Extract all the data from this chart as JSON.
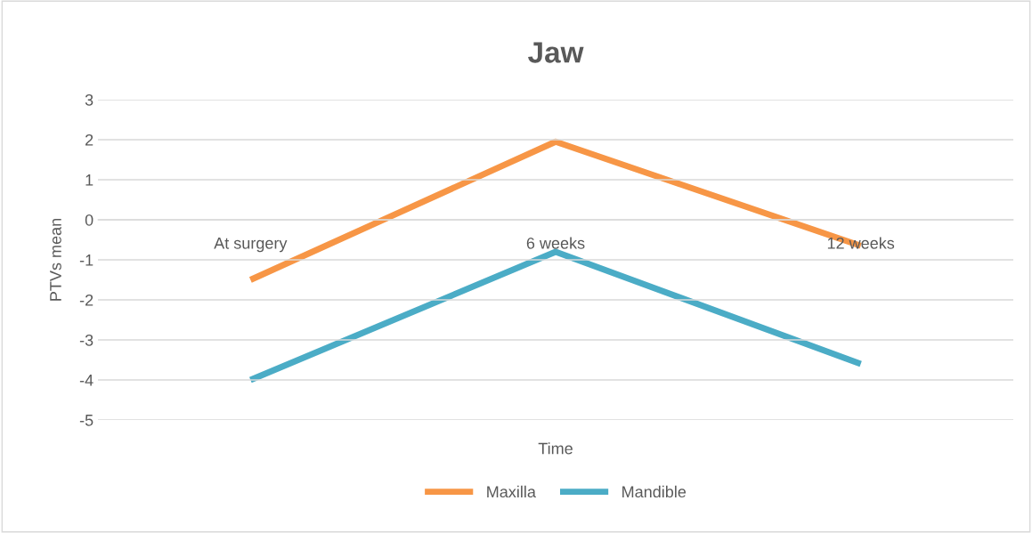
{
  "chart_data": {
    "type": "line",
    "title": "Jaw",
    "xlabel": "Time",
    "ylabel": "PTVs mean",
    "categories": [
      "At surgery",
      "6 weeks",
      "12 weeks"
    ],
    "series": [
      {
        "name": "Maxilla",
        "color": "#f79646",
        "values": [
          -1.5,
          1.95,
          -0.65
        ]
      },
      {
        "name": "Mandible",
        "color": "#4bacc6",
        "values": [
          -4.0,
          -0.8,
          -3.6
        ]
      }
    ],
    "ylim": [
      -5,
      3
    ],
    "yticks": [
      -5,
      -4,
      -3,
      -2,
      -1,
      0,
      1,
      2,
      3
    ],
    "grid": "y",
    "legend": "bottom",
    "marker": "none",
    "line_style": "solid"
  }
}
